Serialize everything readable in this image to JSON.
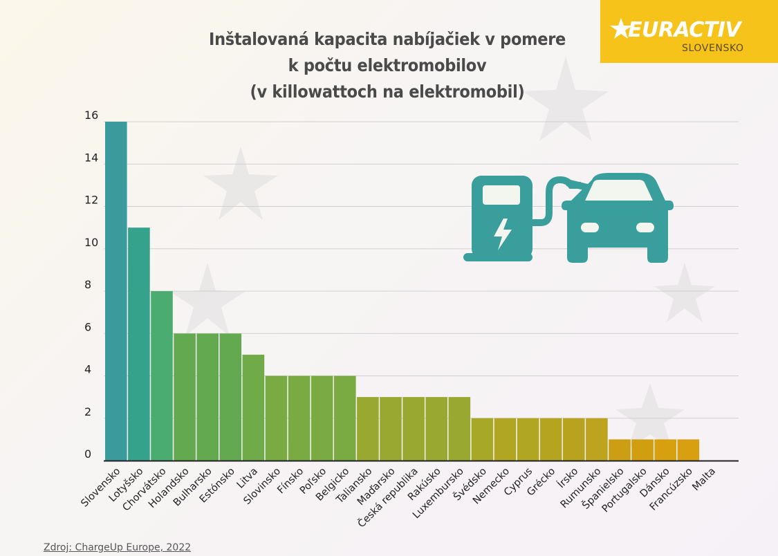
{
  "title_lines": [
    "Inštalovaná kapacita nabíjačiek v pomere",
    "k počtu elektromobilov",
    "(v killowattoch na elektromobil)"
  ],
  "logo": {
    "brand": "EURACTIV",
    "edition": "SLOVENSKO",
    "color": "#f6c31b"
  },
  "source": "Zdroj: ChargeUp Europe, 2022",
  "icon": {
    "name": "ev-charging-station-with-car-icon",
    "color": "#3a9e9c"
  },
  "chart_data": {
    "type": "bar",
    "title": "Inštalovaná kapacita nabíjačiek v pomere k počtu elektromobilov (v killowattoch na elektromobil)",
    "xlabel": "",
    "ylabel": "",
    "ylim": [
      0,
      16
    ],
    "yticks": [
      0,
      2,
      4,
      6,
      8,
      10,
      12,
      14,
      16
    ],
    "grid": true,
    "categories": [
      "Slovensko",
      "Lotyšsko",
      "Chorvátsko",
      "Holandsko",
      "Bulharsko",
      "Estónsko",
      "Litva",
      "Slovinsko",
      "Fínsko",
      "Poľsko",
      "Belgicko",
      "Taliansko",
      "Maďarsko",
      "Česká republika",
      "Rakúsko",
      "Luxembursko",
      "Švédsko",
      "Nemecko",
      "Cyprus",
      "Grécko",
      "Írsko",
      "Rumunsko",
      "Španielsko",
      "Portugalsko",
      "Dánsko",
      "Francúzsko",
      "Malta"
    ],
    "values": [
      16,
      11,
      8,
      6,
      6,
      6,
      5,
      4,
      4,
      4,
      4,
      3,
      3,
      3,
      3,
      3,
      2,
      2,
      2,
      2,
      2,
      2,
      1,
      1,
      1,
      1,
      0
    ],
    "colors": [
      "#3a9a9c",
      "#35a28c",
      "#4aac6e",
      "#62a950",
      "#62a950",
      "#62a950",
      "#6fab48",
      "#7aab42",
      "#7aab42",
      "#7aab42",
      "#7aab42",
      "#98a830",
      "#98a830",
      "#98a830",
      "#98a830",
      "#98a830",
      "#a8a828",
      "#b1a622",
      "#b1a622",
      "#b4a420",
      "#b8a21e",
      "#bda31e",
      "#cc9e14",
      "#d19e10",
      "#d6a00e",
      "#d8a010",
      "#d8a010"
    ]
  }
}
